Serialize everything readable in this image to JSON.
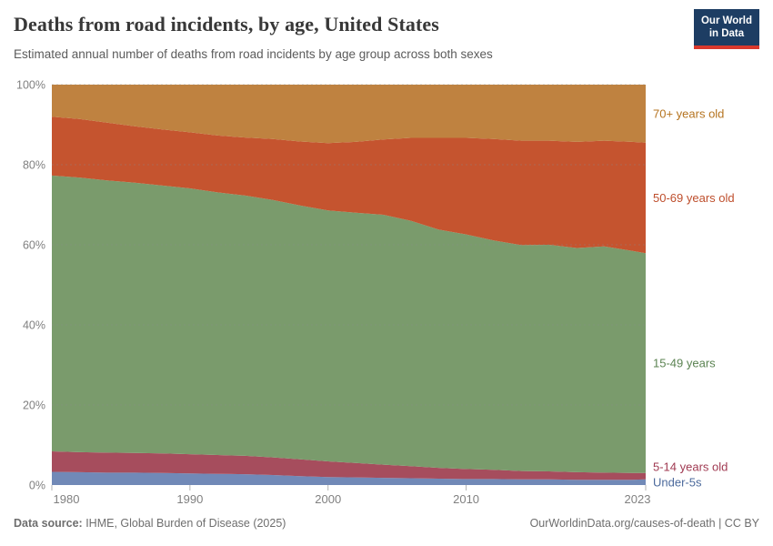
{
  "header": {
    "title": "Deaths from road incidents, by age, United States",
    "subtitle": "Estimated annual number of deaths from road incidents by age group across both sexes",
    "logo": {
      "line1": "Our World",
      "line2": "in Data"
    }
  },
  "chart_data": {
    "type": "area",
    "stacked": true,
    "relative": true,
    "title": "Deaths from road incidents, by age, United States",
    "xlabel": "",
    "ylabel": "",
    "ylim": [
      0,
      100
    ],
    "xlim": [
      1980,
      2023
    ],
    "grid": "dashed-horizontal",
    "legend_position": "right-inline-labels",
    "x": [
      1980,
      1982,
      1984,
      1986,
      1988,
      1990,
      1992,
      1994,
      1996,
      1998,
      2000,
      2002,
      2004,
      2006,
      2008,
      2010,
      2012,
      2014,
      2016,
      2018,
      2020,
      2022,
      2023
    ],
    "series": [
      {
        "name": "Under-5s",
        "color": "#7189B7",
        "label_color": "#4C6A9C",
        "values": [
          3.3,
          3.2,
          3.1,
          3.1,
          3.0,
          2.9,
          2.8,
          2.7,
          2.5,
          2.2,
          2.0,
          1.9,
          1.8,
          1.7,
          1.6,
          1.5,
          1.5,
          1.4,
          1.4,
          1.3,
          1.3,
          1.3,
          1.4
        ]
      },
      {
        "name": "5-14 years old",
        "color": "#A64D5D",
        "label_color": "#A03A52",
        "values": [
          5.1,
          5.0,
          5.0,
          4.9,
          4.9,
          4.8,
          4.7,
          4.6,
          4.4,
          4.2,
          3.9,
          3.6,
          3.3,
          3.0,
          2.7,
          2.5,
          2.3,
          2.1,
          2.0,
          1.9,
          1.8,
          1.7,
          1.6
        ]
      },
      {
        "name": "15-49 years",
        "color": "#7A9B6C",
        "label_color": "#5B8352",
        "values": [
          68.9,
          68.6,
          68.0,
          67.5,
          66.9,
          66.4,
          65.6,
          65.0,
          64.3,
          63.4,
          62.7,
          62.5,
          62.4,
          61.3,
          59.5,
          58.6,
          57.3,
          56.4,
          56.6,
          56.0,
          56.5,
          55.5,
          54.9
        ]
      },
      {
        "name": "50-69 years old",
        "color": "#C5542F",
        "label_color": "#BE4E2C",
        "values": [
          14.7,
          14.6,
          14.4,
          14.1,
          14.0,
          14.0,
          14.2,
          14.5,
          15.2,
          16.0,
          16.8,
          17.7,
          18.8,
          20.7,
          22.9,
          24.1,
          25.3,
          26.1,
          26.0,
          26.5,
          26.4,
          27.2,
          27.6
        ]
      },
      {
        "name": "70+ years old",
        "color": "#BF8240",
        "label_color": "#B5731F",
        "values": [
          8.0,
          8.6,
          9.5,
          10.4,
          11.2,
          11.9,
          12.7,
          13.2,
          13.6,
          14.2,
          14.6,
          14.3,
          13.7,
          13.3,
          13.3,
          13.3,
          13.6,
          14.0,
          14.0,
          14.3,
          14.0,
          14.3,
          14.5
        ]
      }
    ],
    "y_ticks": [
      {
        "value": 0,
        "label": "0%"
      },
      {
        "value": 20,
        "label": "20%"
      },
      {
        "value": 40,
        "label": "40%"
      },
      {
        "value": 60,
        "label": "60%"
      },
      {
        "value": 80,
        "label": "80%"
      },
      {
        "value": 100,
        "label": "100%"
      }
    ],
    "x_ticks": [
      {
        "value": 1980,
        "label": "1980"
      },
      {
        "value": 1990,
        "label": "1990"
      },
      {
        "value": 2000,
        "label": "2000"
      },
      {
        "value": 2010,
        "label": "2010"
      },
      {
        "value": 2023,
        "label": "2023"
      }
    ]
  },
  "footer": {
    "source_label": "Data source:",
    "source_value": " IHME, Global Burden of Disease (2025)",
    "credit": "OurWorldinData.org/causes-of-death | CC BY"
  },
  "colors": {
    "logo_bg": "#1d3d63",
    "logo_underline": "#d9382c",
    "title_text": "#383838",
    "subtitle_text": "#5b5b5b",
    "axis_text": "#808080",
    "gridline": "#8a8a8a",
    "tick_mark": "#b3b3b3",
    "footer_text": "#6e6e6e"
  }
}
